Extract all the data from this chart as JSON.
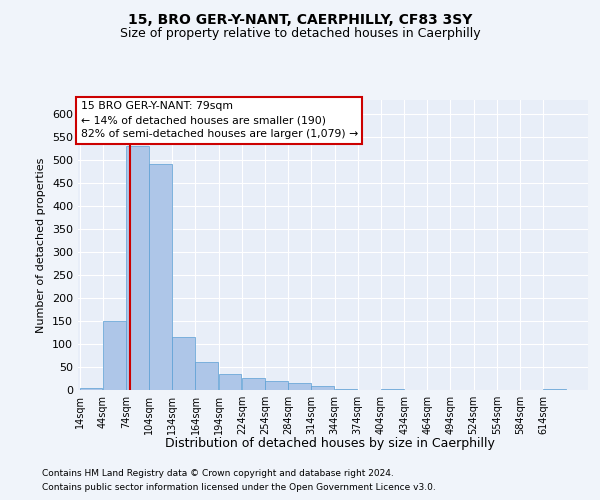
{
  "title1": "15, BRO GER-Y-NANT, CAERPHILLY, CF83 3SY",
  "title2": "Size of property relative to detached houses in Caerphilly",
  "xlabel": "Distribution of detached houses by size in Caerphilly",
  "ylabel": "Number of detached properties",
  "footnote1": "Contains HM Land Registry data © Crown copyright and database right 2024.",
  "footnote2": "Contains public sector information licensed under the Open Government Licence v3.0.",
  "annotation_line1": "15 BRO GER-Y-NANT: 79sqm",
  "annotation_line2": "← 14% of detached houses are smaller (190)",
  "annotation_line3": "82% of semi-detached houses are larger (1,079) →",
  "bar_color": "#aec6e8",
  "bar_edge_color": "#5a9fd4",
  "redline_color": "#cc0000",
  "annotation_box_color": "#cc0000",
  "bin_edges": [
    14,
    44,
    74,
    104,
    134,
    164,
    194,
    224,
    254,
    284,
    314,
    344,
    374,
    404,
    434,
    464,
    494,
    524,
    554,
    584,
    614,
    644
  ],
  "bin_counts": [
    5,
    150,
    530,
    490,
    115,
    60,
    35,
    25,
    20,
    15,
    8,
    2,
    0,
    2,
    0,
    0,
    0,
    0,
    0,
    0,
    2
  ],
  "red_line_x": 79,
  "ylim": [
    0,
    630
  ],
  "yticks": [
    0,
    50,
    100,
    150,
    200,
    250,
    300,
    350,
    400,
    450,
    500,
    550,
    600
  ],
  "background_color": "#f0f4fa",
  "plot_bg_color": "#e8eef8",
  "figsize": [
    6.0,
    5.0
  ],
  "dpi": 100
}
